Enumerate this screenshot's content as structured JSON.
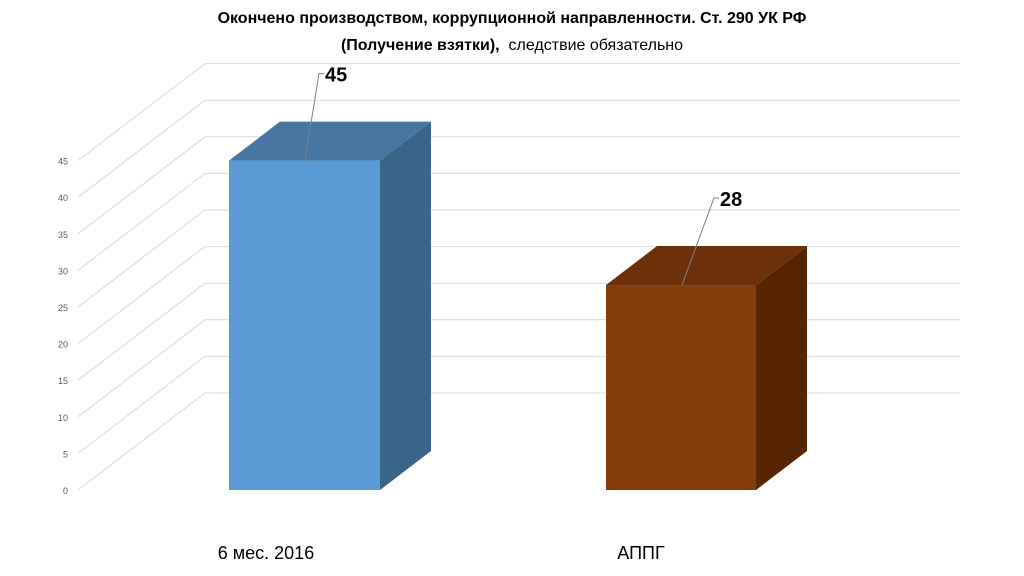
{
  "chart_data": {
    "type": "bar",
    "title_line1": "Окончено производством, коррупционной направленности. Ст. 290 УК РФ",
    "title_line2_bold": "(Получение взятки),",
    "title_line2_normal": "следствие обязательно",
    "categories": [
      "6 мес. 2016",
      "АППГ"
    ],
    "values": [
      45,
      28
    ],
    "ylim": [
      0,
      45
    ],
    "yticks": [
      0,
      5,
      10,
      15,
      20,
      25,
      30,
      35,
      40,
      45
    ],
    "grid": true,
    "three_d": true,
    "colors": {
      "bar1_front": "#5B9BD5",
      "bar1_side": "#3A6589",
      "bar1_top": "#4676A1",
      "bar2_front": "#843C0C",
      "bar2_side": "#582504",
      "bar2_top": "#6B3009",
      "gridline": "#d9d9d9",
      "leader": "#808080"
    }
  }
}
